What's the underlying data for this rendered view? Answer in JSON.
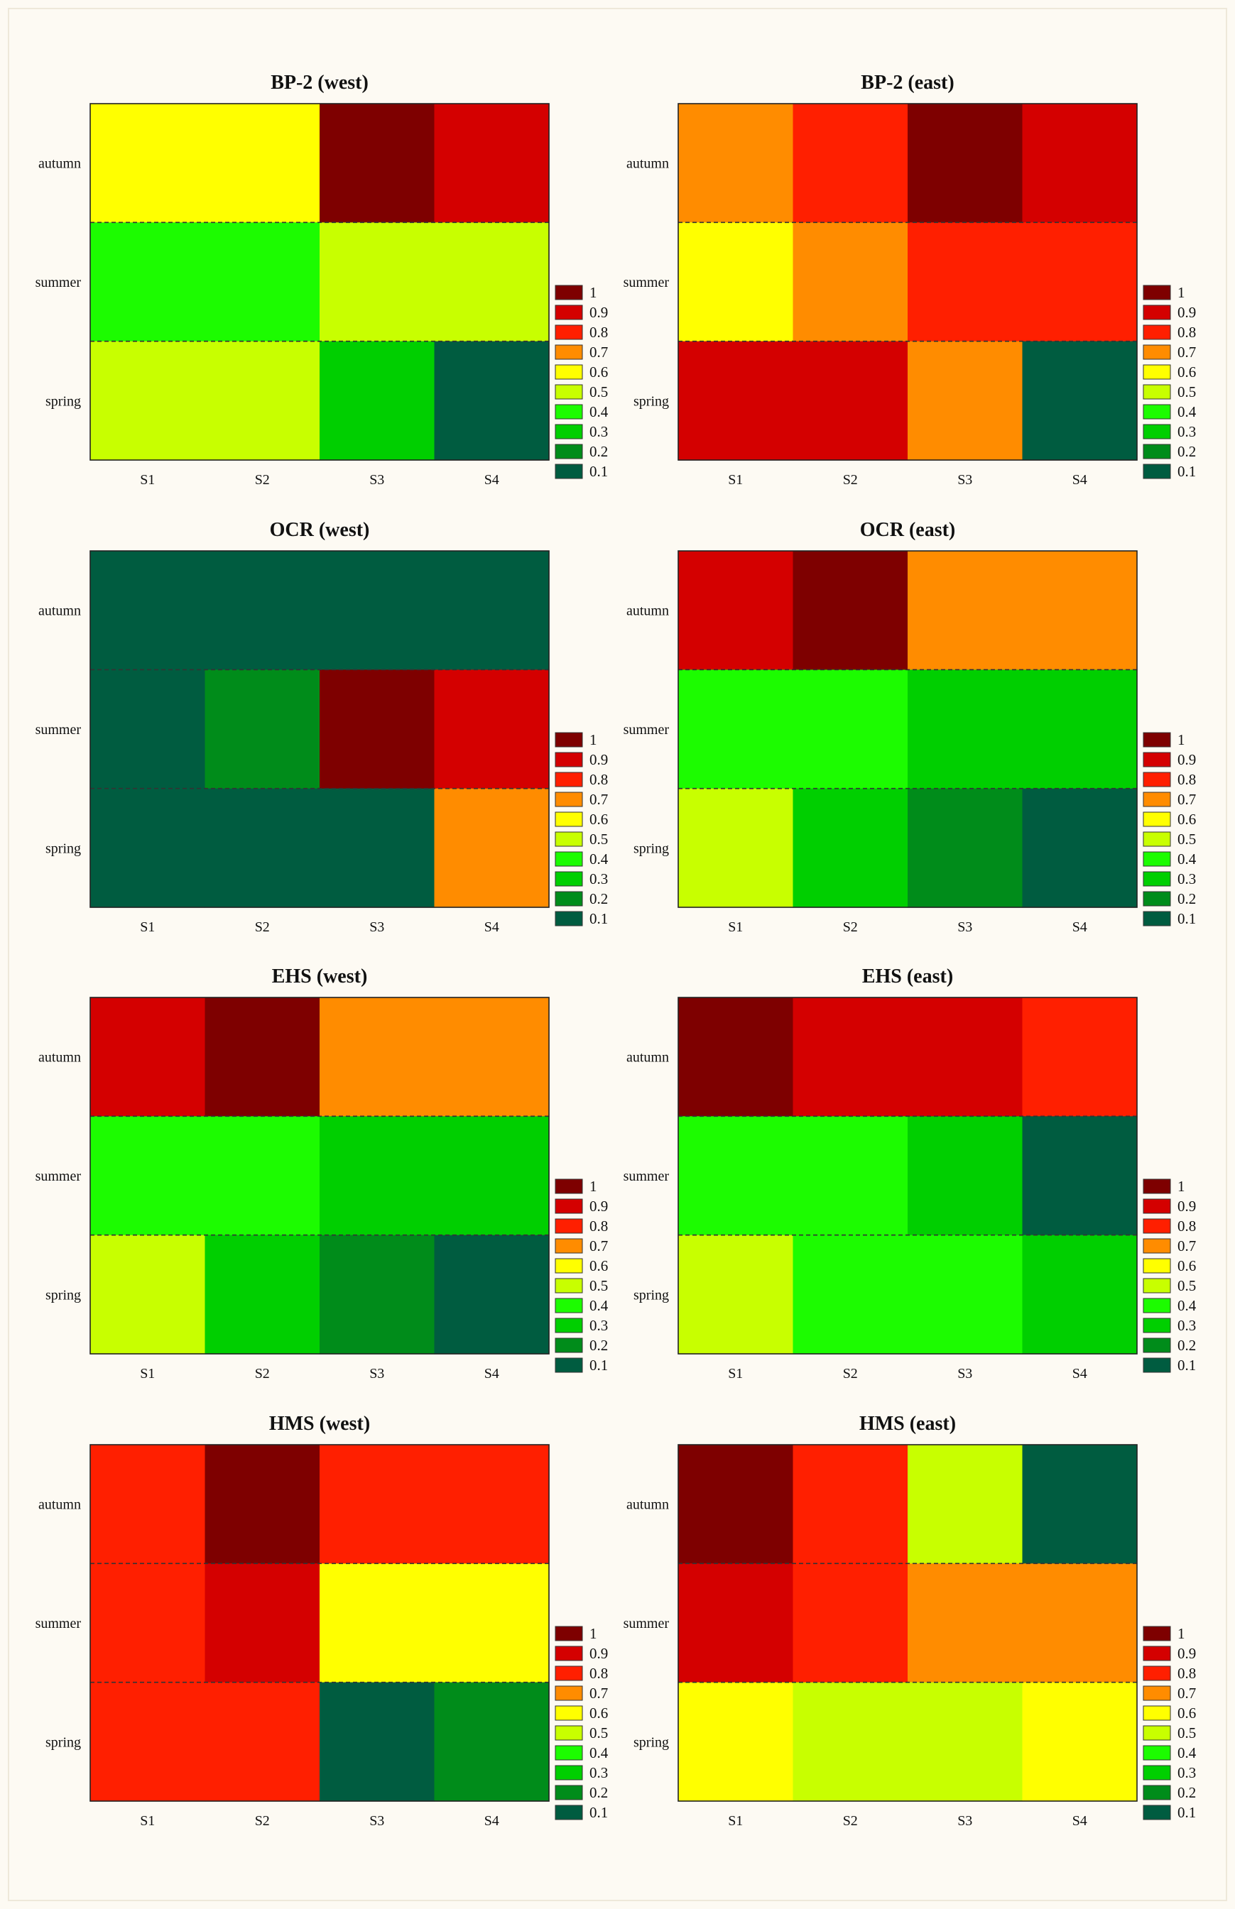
{
  "colors": {
    "background": "#fdfaf3",
    "scale": {
      "0.1": "#005c40",
      "0.2": "#008c1a",
      "0.3": "#00cf00",
      "0.4": "#1cfc00",
      "0.5": "#c8ff00",
      "0.6": "#ffff00",
      "0.7": "#ff8c00",
      "0.8": "#ff1f00",
      "0.9": "#d40000",
      "1": "#7e0000"
    }
  },
  "legend": {
    "entries": [
      {
        "label": "1",
        "value": 1.0
      },
      {
        "label": "0.9",
        "value": 0.9
      },
      {
        "label": "0.8",
        "value": 0.8
      },
      {
        "label": "0.7",
        "value": 0.7
      },
      {
        "label": "0.6",
        "value": 0.6
      },
      {
        "label": "0.5",
        "value": 0.5
      },
      {
        "label": "0.4",
        "value": 0.4
      },
      {
        "label": "0.3",
        "value": 0.3
      },
      {
        "label": "0.2",
        "value": 0.2
      },
      {
        "label": "0.1",
        "value": 0.1
      }
    ]
  },
  "chart_data": [
    {
      "type": "heatmap",
      "title": "BP-2 (west)",
      "x": [
        "S1",
        "S2",
        "S3",
        "S4"
      ],
      "y": [
        "autumn",
        "summer",
        "spring"
      ],
      "values": [
        [
          0.6,
          0.6,
          1.0,
          0.9
        ],
        [
          0.4,
          0.4,
          0.5,
          0.5
        ],
        [
          0.5,
          0.5,
          0.3,
          0.1
        ]
      ],
      "legend": "right"
    },
    {
      "type": "heatmap",
      "title": "BP-2 (east)",
      "x": [
        "S1",
        "S2",
        "S3",
        "S4"
      ],
      "y": [
        "autumn",
        "summer",
        "spring"
      ],
      "values": [
        [
          0.7,
          0.8,
          1.0,
          0.95
        ],
        [
          0.6,
          0.7,
          0.8,
          0.8
        ],
        [
          0.9,
          0.95,
          0.7,
          0.1
        ]
      ],
      "legend": "right"
    },
    {
      "type": "heatmap",
      "title": "OCR (west)",
      "x": [
        "S1",
        "S2",
        "S3",
        "S4"
      ],
      "y": [
        "autumn",
        "summer",
        "spring"
      ],
      "values": [
        [
          0.1,
          0.1,
          0.1,
          0.1
        ],
        [
          0.1,
          0.2,
          1.0,
          0.95
        ],
        [
          0.1,
          0.1,
          0.1,
          0.7
        ]
      ],
      "legend": "right"
    },
    {
      "type": "heatmap",
      "title": "OCR (east)",
      "x": [
        "S1",
        "S2",
        "S3",
        "S4"
      ],
      "y": [
        "autumn",
        "summer",
        "spring"
      ],
      "values": [
        [
          0.9,
          1.0,
          0.7,
          0.7
        ],
        [
          0.4,
          0.4,
          0.3,
          0.3
        ],
        [
          0.5,
          0.3,
          0.2,
          0.1
        ]
      ],
      "legend": "right"
    },
    {
      "type": "heatmap",
      "title": "EHS (west)",
      "x": [
        "S1",
        "S2",
        "S3",
        "S4"
      ],
      "y": [
        "autumn",
        "summer",
        "spring"
      ],
      "values": [
        [
          0.9,
          1.0,
          0.7,
          0.7
        ],
        [
          0.4,
          0.4,
          0.3,
          0.3
        ],
        [
          0.5,
          0.3,
          0.2,
          0.1
        ]
      ],
      "legend": "right"
    },
    {
      "type": "heatmap",
      "title": "EHS (east)",
      "x": [
        "S1",
        "S2",
        "S3",
        "S4"
      ],
      "y": [
        "autumn",
        "summer",
        "spring"
      ],
      "values": [
        [
          1.0,
          0.95,
          0.9,
          0.8
        ],
        [
          0.4,
          0.4,
          0.3,
          0.1
        ],
        [
          0.5,
          0.4,
          0.4,
          0.3
        ]
      ],
      "legend": "right"
    },
    {
      "type": "heatmap",
      "title": "HMS (west)",
      "x": [
        "S1",
        "S2",
        "S3",
        "S4"
      ],
      "y": [
        "autumn",
        "summer",
        "spring"
      ],
      "values": [
        [
          0.8,
          1.0,
          0.8,
          0.8
        ],
        [
          0.8,
          0.9,
          0.6,
          0.6
        ],
        [
          0.8,
          0.8,
          0.1,
          0.2
        ]
      ],
      "legend": "right"
    },
    {
      "type": "heatmap",
      "title": "HMS (east)",
      "x": [
        "S1",
        "S2",
        "S3",
        "S4"
      ],
      "y": [
        "autumn",
        "summer",
        "spring"
      ],
      "values": [
        [
          1.0,
          0.8,
          0.5,
          0.1
        ],
        [
          0.9,
          0.8,
          0.7,
          0.7
        ],
        [
          0.6,
          0.5,
          0.5,
          0.6
        ]
      ],
      "legend": "right"
    }
  ]
}
